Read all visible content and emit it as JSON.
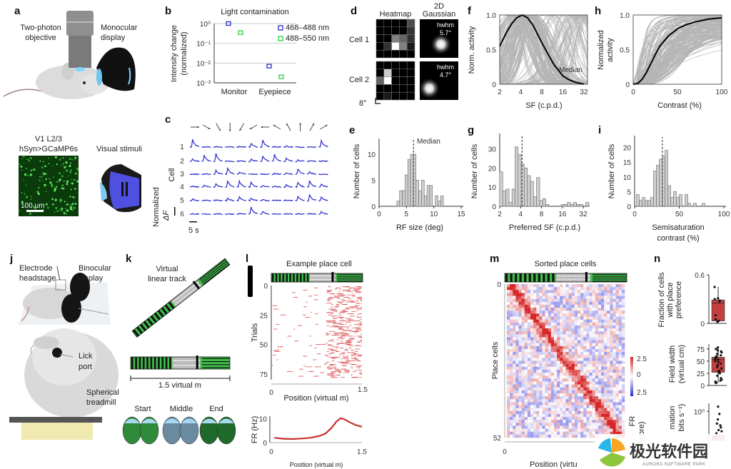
{
  "panels": {
    "a": {
      "label": "a",
      "objective": [
        "Two-photon",
        "objective"
      ],
      "display": [
        "Monocular",
        "display"
      ],
      "imaging": [
        "V1 L2/3",
        "hSyn>GCaMP6s"
      ],
      "scale_bar": "100 µm",
      "stimuli": "Visual stimuli"
    },
    "b": {
      "label": "b"
    },
    "c": {
      "label": "c",
      "cell_axis": "Cell",
      "y_label": "Normalized",
      "y_label2": "ΔF",
      "time_scale": "5 s",
      "cell_labels": [
        "1",
        "2",
        "3",
        "4",
        "5",
        "6"
      ]
    },
    "d": {
      "label": "d",
      "col_heatmap": "Heatmap",
      "col_gauss": [
        "2D",
        "Gaussian"
      ],
      "cells": [
        {
          "name": "Cell 1",
          "hwhm_label": "hwhm",
          "hwhm": "5.7°",
          "heatmap": [
            [
              0,
              0,
              0,
              0,
              0.3
            ],
            [
              0,
              0,
              0,
              0,
              0.2
            ],
            [
              0,
              0,
              0.5,
              0.4,
              0.2
            ],
            [
              0,
              0.2,
              1,
              0.5,
              0.1
            ],
            [
              0,
              0,
              0,
              0,
              0
            ]
          ],
          "center": [
            0.55,
            0.65
          ]
        },
        {
          "name": "Cell 2",
          "hwhm_label": "hwhm",
          "hwhm": "4.7°",
          "heatmap": [
            [
              0,
              0,
              0,
              0,
              0
            ],
            [
              0,
              0.8,
              0,
              0,
              0
            ],
            [
              0.4,
              1,
              0,
              0,
              0
            ],
            [
              0,
              0,
              0,
              0,
              0
            ],
            [
              0,
              0.1,
              0,
              0,
              0
            ]
          ],
          "center": [
            0.25,
            0.7
          ]
        }
      ],
      "scale": "8°"
    },
    "e": {
      "label": "e"
    },
    "f": {
      "label": "f"
    },
    "g": {
      "label": "g"
    },
    "h": {
      "label": "h"
    },
    "i": {
      "label": "i"
    },
    "j": {
      "label": "j",
      "headstage": [
        "Electrode",
        "headstage"
      ],
      "display": [
        "Binocular",
        "display"
      ],
      "lick": [
        "Lick",
        "port"
      ],
      "treadmill": [
        "Spherical",
        "treadmill"
      ]
    },
    "k": {
      "label": "k",
      "track": [
        "Virtual",
        "linear track"
      ],
      "length": "1.5 virtual m",
      "views": [
        "Start",
        "Middle",
        "End"
      ]
    },
    "l": {
      "label": "l"
    },
    "m": {
      "label": "m"
    },
    "n": {
      "label": "n"
    }
  },
  "colors": {
    "blue": "#2b2bd0",
    "green": "#2ecc40",
    "red": "#d9474a",
    "box_red": "#c2413f",
    "hist_gray": "#cfcfcf"
  },
  "chart_data": [
    {
      "id": "b",
      "type": "scatter",
      "title": "Light contamination",
      "ylabel": [
        "Intensity change",
        "(normalized)"
      ],
      "yscale": "log",
      "ylim": [
        0.001,
        1
      ],
      "yticks": [
        "10⁰",
        "10⁻¹",
        "10⁻²",
        "10⁻³"
      ],
      "categories": [
        "Monitor",
        "Eyepiece"
      ],
      "series": [
        {
          "name": "468–488 nm",
          "color": "#2b2bd0",
          "values": [
            1.0,
            0.007
          ]
        },
        {
          "name": "488–550 nm",
          "color": "#2ecc40",
          "values": [
            0.35,
            0.002
          ]
        }
      ],
      "legend": "top-right",
      "grid": true
    },
    {
      "id": "c",
      "type": "line",
      "directions_deg": [
        0,
        -30,
        -60,
        -90,
        -120,
        -150,
        180,
        150,
        120,
        90,
        60,
        30
      ],
      "responses": [
        [
          1.0,
          0,
          0.05,
          0,
          0.1,
          0.5,
          0.9,
          0.05,
          0.15,
          0,
          0,
          0.8
        ],
        [
          0.3,
          0.8,
          1.0,
          0.05,
          0.1,
          0.3,
          0.7,
          0.9,
          0.4,
          0.2,
          0.1,
          0.1
        ],
        [
          0,
          0,
          0.5,
          0.8,
          0.3,
          0,
          0,
          0.1,
          0.15,
          0.7,
          0.3,
          0
        ],
        [
          0.1,
          0.2,
          0.4,
          0.8,
          0.8,
          0.6,
          0.2,
          0.1,
          0.3,
          0.6,
          0.8,
          0.4
        ],
        [
          0.2,
          0.05,
          0.1,
          0.3,
          0.5,
          0.3,
          0.1,
          0.05,
          0.1,
          0.6,
          0.8,
          0.5
        ],
        [
          0.05,
          0,
          0.05,
          0.05,
          0.1,
          0.9,
          0.4,
          0.05,
          0.05,
          0.05,
          0.1,
          0.3
        ]
      ]
    },
    {
      "id": "e",
      "type": "bar",
      "xlabel": "RF size (deg)",
      "ylabel": "Number of cells",
      "xlim": [
        0,
        15
      ],
      "ylim": [
        0,
        13
      ],
      "xticks": [
        "0",
        "5",
        "10",
        "15"
      ],
      "yticks": [
        "0",
        "5",
        "10"
      ],
      "bin_width": 0.5,
      "x": [
        3.5,
        4,
        4.5,
        5,
        5.5,
        6,
        6.5,
        7,
        7.5,
        8,
        8.5,
        9,
        9.5,
        10,
        10.5,
        11,
        11.5
      ],
      "values": [
        1,
        3,
        3,
        6,
        9,
        10,
        10,
        5,
        3,
        5,
        2,
        4,
        4,
        0,
        2,
        1,
        2
      ],
      "median": 6.3,
      "median_label": "Median"
    },
    {
      "id": "f",
      "type": "line",
      "xlabel": "SF (c.p.d.)",
      "ylabel": "Norm. activity",
      "xscale": "log2",
      "xlim": [
        2,
        36
      ],
      "ylim": [
        0,
        1
      ],
      "xticks": [
        "2",
        "4",
        "8",
        "16",
        "32"
      ],
      "yticks": [
        "0",
        "0.5",
        "1.0"
      ],
      "median_label": "Median",
      "median": [
        [
          2,
          0.55
        ],
        [
          2.5,
          0.75
        ],
        [
          3,
          0.88
        ],
        [
          3.5,
          0.96
        ],
        [
          4.2,
          1.0
        ],
        [
          5,
          0.96
        ],
        [
          6,
          0.85
        ],
        [
          8,
          0.6
        ],
        [
          10,
          0.42
        ],
        [
          12,
          0.28
        ],
        [
          16,
          0.12
        ],
        [
          20,
          0.06
        ],
        [
          24,
          0.03
        ],
        [
          32,
          0.0
        ]
      ]
    },
    {
      "id": "g",
      "type": "bar",
      "xlabel": "Preferred SF (c.p.d.)",
      "ylabel": "Number of cells",
      "xscale": "log2",
      "xlim": [
        2,
        36.8
      ],
      "ylim": [
        0,
        38
      ],
      "xticks": [
        "2",
        "4",
        "8",
        "16",
        "32"
      ],
      "yticks": [
        "0",
        "10",
        "20",
        "30"
      ],
      "x": [
        2.1,
        2.33,
        2.59,
        2.86,
        3.16,
        3.5,
        3.88,
        4.29,
        4.75,
        5.27,
        5.83,
        6.46,
        7.15,
        7.91,
        8.76,
        9.7,
        10.75,
        11.9,
        13.17,
        14.59,
        16.15,
        17.88,
        19.8,
        21.93,
        24.28,
        26.88,
        29.77,
        32.96,
        36.5
      ],
      "values": [
        18,
        8,
        9,
        2,
        9,
        31,
        27,
        22,
        20,
        16,
        13,
        5,
        15,
        3,
        4,
        1,
        0,
        0,
        0,
        0,
        1,
        1,
        2,
        1,
        2,
        1,
        1,
        0,
        2
      ],
      "median": 4.2
    },
    {
      "id": "h",
      "type": "line",
      "xlabel": "Contrast (%)",
      "ylabel": [
        "Normalized",
        "activity"
      ],
      "xlim": [
        0,
        100
      ],
      "ylim": [
        0,
        1
      ],
      "xticks": [
        "0",
        "50",
        "100"
      ],
      "yticks": [
        "0",
        "0.5",
        "1.0"
      ],
      "median": [
        [
          0,
          0
        ],
        [
          5,
          0.01
        ],
        [
          10,
          0.07
        ],
        [
          15,
          0.17
        ],
        [
          20,
          0.3
        ],
        [
          25,
          0.43
        ],
        [
          30,
          0.55
        ],
        [
          40,
          0.7
        ],
        [
          50,
          0.8
        ],
        [
          60,
          0.86
        ],
        [
          70,
          0.9
        ],
        [
          85,
          0.94
        ],
        [
          100,
          0.96
        ]
      ]
    },
    {
      "id": "i",
      "type": "bar",
      "xlabel": [
        "Semisaturation",
        "contrast (%)"
      ],
      "ylabel": "Number of cells",
      "xlim": [
        0,
        100
      ],
      "ylim": [
        0,
        24
      ],
      "xticks": [
        "0",
        "50",
        "100"
      ],
      "yticks": [
        "0",
        "5",
        "10",
        "15",
        "20"
      ],
      "bin_width": 3.2,
      "x": [
        3.6,
        6.8,
        10,
        13.2,
        16.4,
        19.6,
        22.8,
        26,
        29.2,
        32.4,
        35.6,
        38.8,
        42,
        45.2,
        48.4,
        51.6,
        54.8,
        58,
        61.2,
        64.4,
        67.6,
        70.8,
        74,
        77.2
      ],
      "values": [
        4,
        2,
        3,
        2,
        2,
        3,
        12,
        14,
        16,
        17,
        19,
        7,
        3,
        5,
        3,
        4,
        0,
        4,
        1,
        0,
        1,
        0,
        0,
        1
      ],
      "median": 31
    },
    {
      "id": "l_raster",
      "type": "scatter",
      "title": "Example place cell",
      "xlabel": "Position (virtual m)",
      "ylabel": "Trials",
      "xlim": [
        0,
        1.5
      ],
      "ylim": [
        0,
        80
      ],
      "xticks": [
        "0",
        "1.5"
      ],
      "yticks": [
        "0",
        "25",
        "50",
        "75"
      ]
    },
    {
      "id": "l_fr",
      "type": "line",
      "xlabel": "Position (virtual m)",
      "ylabel": "FR (Hz)",
      "xlim": [
        0,
        1.5
      ],
      "ylim": [
        0,
        11
      ],
      "xticks": [
        "0",
        "1.5"
      ],
      "yticks": [
        "0",
        "10"
      ],
      "x": [
        0.05,
        0.2,
        0.35,
        0.5,
        0.65,
        0.8,
        0.9,
        1.0,
        1.08,
        1.15,
        1.22,
        1.3,
        1.4,
        1.5
      ],
      "values": [
        2.0,
        1.6,
        1.5,
        1.7,
        2.0,
        2.8,
        3.8,
        6.2,
        8.8,
        10.2,
        9.6,
        8.4,
        7.3,
        6.6
      ]
    },
    {
      "id": "m",
      "type": "heatmap",
      "title": "Sorted place cells",
      "xlabel": "Position (virtu",
      "ylabel": "Place cells",
      "yticks": [
        "0",
        "52"
      ],
      "xticks": [
        "0"
      ],
      "n_cells": 52,
      "colorbar": {
        "label": [
          "FR",
          "z score)"
        ],
        "ticks": [
          "2.5",
          "0",
          "2.5"
        ],
        "range": [
          -2.5,
          2.5
        ]
      }
    },
    {
      "id": "n1",
      "type": "box",
      "ylabel": [
        "Fraction of cells",
        "with place",
        "preference"
      ],
      "ylim": [
        0,
        0.6
      ],
      "yticks": [
        "0",
        "0.6"
      ],
      "box": {
        "q1": 0.03,
        "median": 0.25,
        "q3": 0.29,
        "whisker_low": 0.02,
        "whisker_high": 0.45
      },
      "points": [
        0.45,
        0.31,
        0.3,
        0.28,
        0.27,
        0.1,
        0.05,
        0.03,
        0.02
      ]
    },
    {
      "id": "n2",
      "type": "box",
      "ylabel": [
        "Field width",
        "(virtual cm)"
      ],
      "ylim": [
        0,
        85
      ],
      "yticks": [
        "0",
        "25",
        "50",
        "75"
      ],
      "box": {
        "q1": 27,
        "median": 53,
        "q3": 58,
        "whisker_low": 5,
        "whisker_high": 78
      },
      "points": [
        78,
        75,
        72,
        70,
        68,
        65,
        62,
        60,
        58,
        57,
        55,
        53,
        50,
        48,
        45,
        42,
        38,
        35,
        30,
        28,
        25,
        20,
        15,
        12,
        10,
        8,
        6,
        5
      ]
    },
    {
      "id": "n3",
      "type": "box",
      "ylabel": [
        "mation",
        "bits s⁻¹)"
      ],
      "yscale": "log",
      "yticks": [
        "10⁰"
      ],
      "points": [
        1.5,
        0.8,
        0.5,
        0.35,
        0.3,
        0.25,
        0.2,
        0.18,
        0.15,
        0.12
      ]
    }
  ],
  "watermark": {
    "text": "极光软件园",
    "subtext": "AURORA SOFTWARE PARK"
  }
}
